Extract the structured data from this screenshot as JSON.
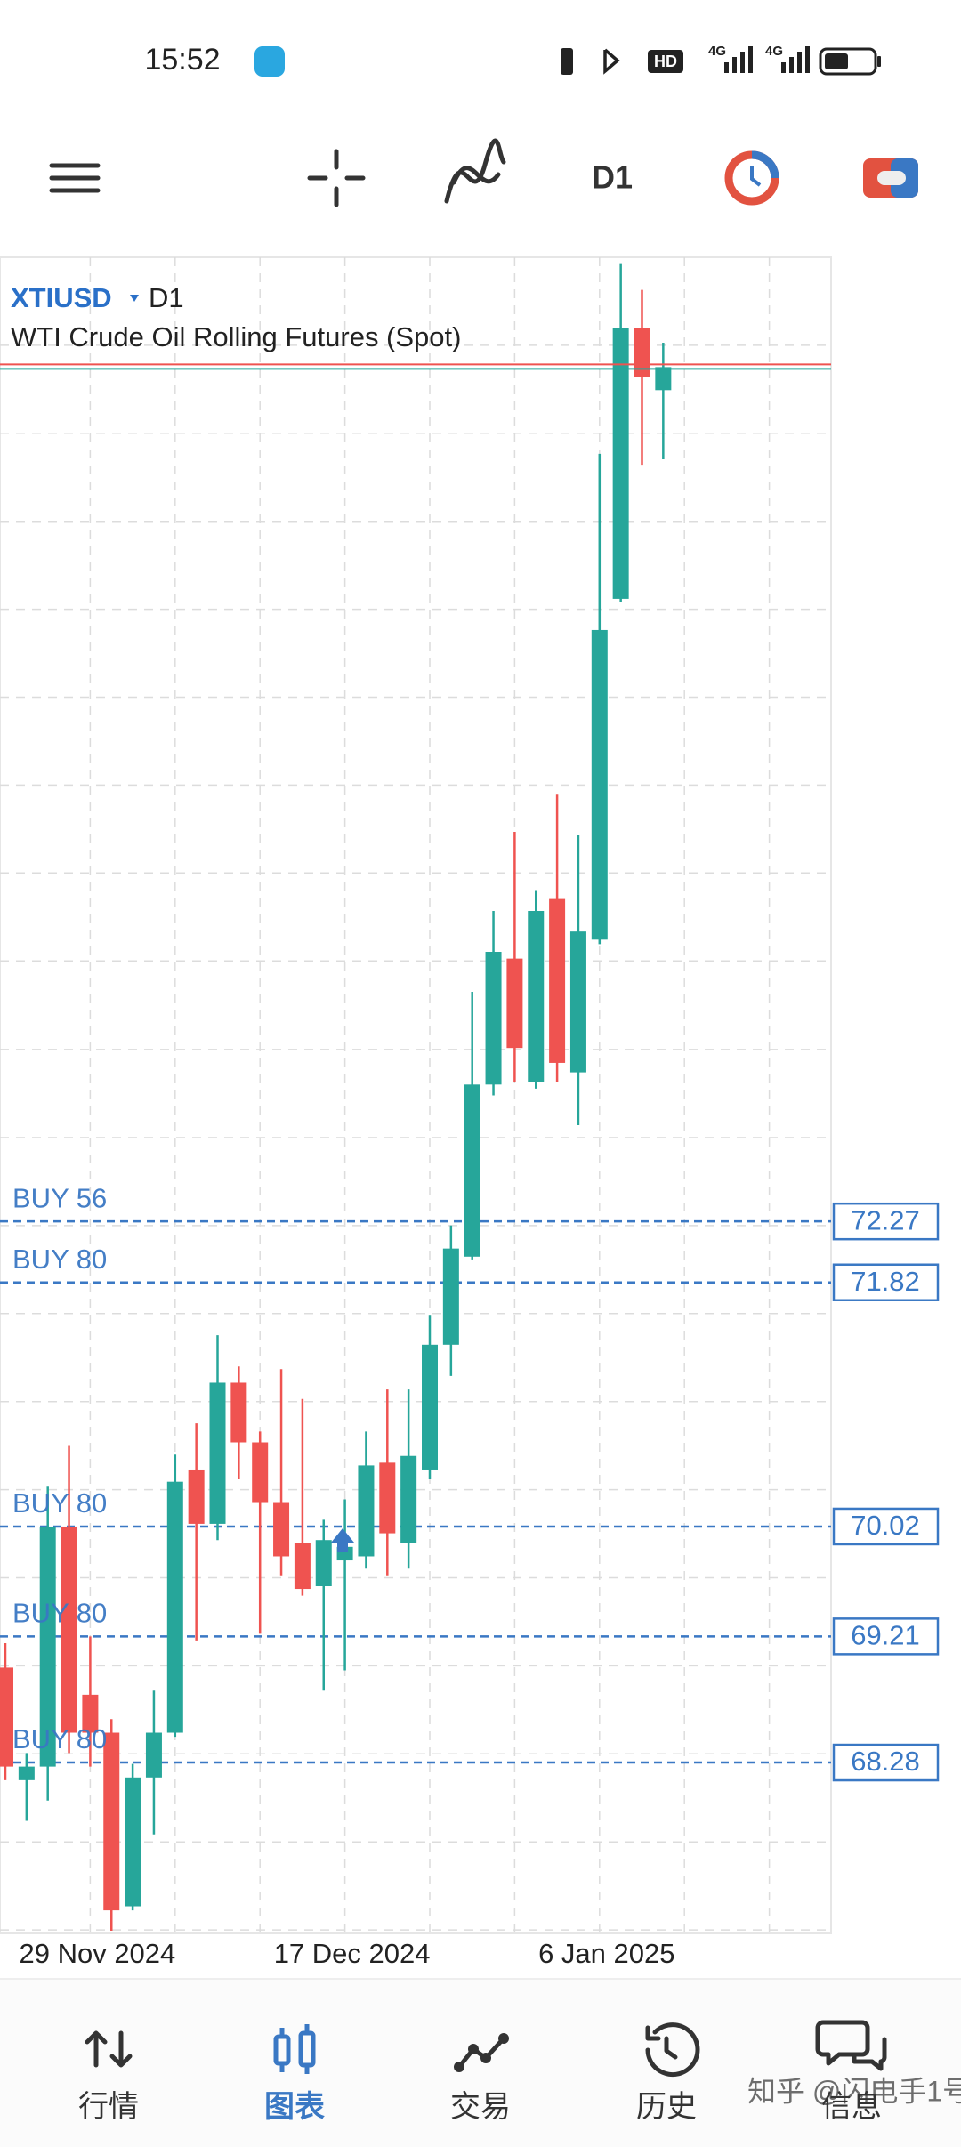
{
  "status_bar": {
    "time": "15:52",
    "hd": "HD",
    "network": [
      "4G",
      "4G"
    ]
  },
  "toolbar": {
    "timeframe": "D1"
  },
  "chart_data": {
    "type": "candlestick",
    "symbol": "XTIUSD",
    "timeframe": "D1",
    "description": "WTI Crude Oil Rolling Futures (Spot)",
    "x": [
      null,
      null,
      null,
      null,
      "29 Nov 2024",
      null,
      null,
      null,
      null,
      null,
      null,
      null,
      null,
      null,
      null,
      null,
      "17 Dec 2024",
      null,
      null,
      null,
      null,
      null,
      null,
      null,
      null,
      null,
      null,
      null,
      "6 Jan 2025",
      null,
      null,
      null
    ],
    "open": [
      68.98,
      68.15,
      68.25,
      70.02,
      68.78,
      68.5,
      67.22,
      68.17,
      68.5,
      70.44,
      70.04,
      71.08,
      70.64,
      70.2,
      69.9,
      69.58,
      69.77,
      69.8,
      70.49,
      69.9,
      70.44,
      71.36,
      72.01,
      73.28,
      74.21,
      73.3,
      74.65,
      73.37,
      74.35,
      76.86,
      78.86,
      78.4
    ],
    "high": [
      69.16,
      68.35,
      70.32,
      70.62,
      69.21,
      68.6,
      68.27,
      68.81,
      70.55,
      70.78,
      71.43,
      71.2,
      70.72,
      71.18,
      70.96,
      70.07,
      70.22,
      70.72,
      71.03,
      71.03,
      71.58,
      72.24,
      73.96,
      74.56,
      75.14,
      74.71,
      75.42,
      75.12,
      77.93,
      79.33,
      79.14,
      78.75
    ],
    "low": [
      68.15,
      67.85,
      68.0,
      68.35,
      68.25,
      67.04,
      67.19,
      67.75,
      68.47,
      69.18,
      69.92,
      70.37,
      69.23,
      69.66,
      69.51,
      68.81,
      68.96,
      69.71,
      69.66,
      69.71,
      70.37,
      71.13,
      71.99,
      73.2,
      73.3,
      73.25,
      73.3,
      72.98,
      74.31,
      76.84,
      77.85,
      77.89
    ],
    "close": [
      68.25,
      68.25,
      70.02,
      68.5,
      68.5,
      67.19,
      68.17,
      68.5,
      70.35,
      70.04,
      71.08,
      70.64,
      70.2,
      69.8,
      69.56,
      69.92,
      69.87,
      70.47,
      69.97,
      70.54,
      71.36,
      72.07,
      73.28,
      74.26,
      73.55,
      74.56,
      73.44,
      74.41,
      76.63,
      78.86,
      78.5,
      78.57
    ],
    "up_color": "#26a69a",
    "down_color": "#ef5350",
    "ylim": [
      67.02,
      79.38
    ],
    "grid": true,
    "orders": [
      {
        "label": "BUY 56",
        "price": 72.27
      },
      {
        "label": "BUY 80",
        "price": 71.82
      },
      {
        "label": "BUY 80",
        "price": 70.02
      },
      {
        "label": "BUY 80",
        "price": 69.21
      },
      {
        "label": "BUY 80",
        "price": 68.28
      }
    ],
    "order_color": "#3a78c4"
  },
  "nav": {
    "items": [
      "行情",
      "图表",
      "交易",
      "历史",
      "信息"
    ],
    "active": 1
  },
  "watermark": "知乎 @闪电手1号"
}
